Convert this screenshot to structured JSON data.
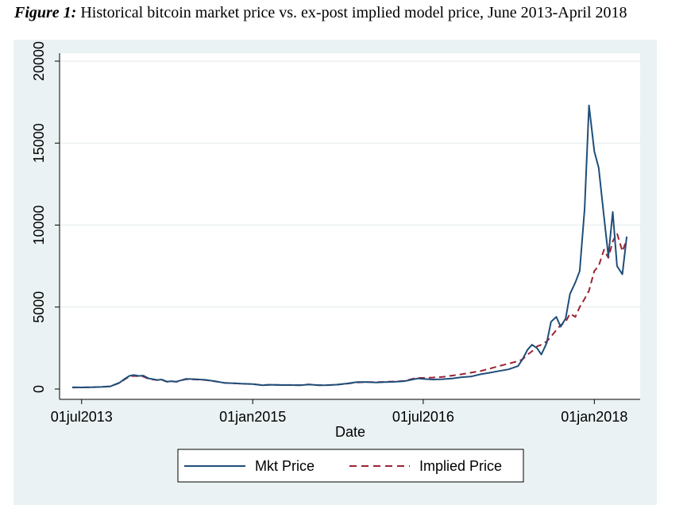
{
  "figure": {
    "caption_lead": "Figure 1:",
    "caption_text": " Historical bitcoin market price vs. ex-post implied model price, June 2013-April 2018"
  },
  "colors": {
    "background": "#eaf2f3",
    "plot_area": "#ffffff",
    "grid": "#e7eeef",
    "mkt_price": "#1f4e79",
    "implied_price": "#9b2335"
  },
  "chart_data": {
    "type": "line",
    "title": "",
    "xlabel": "Date",
    "ylabel": "",
    "x_ticks": [
      "01jul2013",
      "01jan2015",
      "01jul2016",
      "01jan2018"
    ],
    "x_tick_values": [
      "2013-07-01",
      "2015-01-01",
      "2016-07-01",
      "2018-01-01"
    ],
    "xlim": [
      "2013-06-01",
      "2018-04-30"
    ],
    "y_ticks": [
      "0",
      "5000",
      "10000",
      "15000",
      "20000"
    ],
    "y_tick_values": [
      0,
      5000,
      10000,
      15000,
      20000
    ],
    "ylim": [
      0,
      20000
    ],
    "grid": true,
    "legend_position": "bottom",
    "x": [
      "2013-06-01",
      "2013-07-01",
      "2013-08-01",
      "2013-09-01",
      "2013-10-01",
      "2013-11-01",
      "2013-11-15",
      "2013-12-01",
      "2013-12-15",
      "2014-01-01",
      "2014-01-15",
      "2014-02-01",
      "2014-02-15",
      "2014-03-01",
      "2014-03-15",
      "2014-04-01",
      "2014-04-15",
      "2014-05-01",
      "2014-06-01",
      "2014-07-01",
      "2014-08-01",
      "2014-09-01",
      "2014-10-01",
      "2014-11-01",
      "2014-12-01",
      "2015-01-01",
      "2015-02-01",
      "2015-03-01",
      "2015-04-01",
      "2015-05-01",
      "2015-06-01",
      "2015-07-01",
      "2015-08-01",
      "2015-09-01",
      "2015-10-01",
      "2015-11-01",
      "2015-12-01",
      "2016-01-01",
      "2016-02-01",
      "2016-03-01",
      "2016-04-01",
      "2016-05-01",
      "2016-06-01",
      "2016-06-15",
      "2016-07-01",
      "2016-08-01",
      "2016-09-01",
      "2016-10-01",
      "2016-11-01",
      "2016-12-01",
      "2017-01-01",
      "2017-02-01",
      "2017-03-01",
      "2017-04-01",
      "2017-05-01",
      "2017-05-15",
      "2017-06-01",
      "2017-06-15",
      "2017-07-01",
      "2017-07-15",
      "2017-08-01",
      "2017-08-15",
      "2017-09-01",
      "2017-09-15",
      "2017-10-01",
      "2017-10-15",
      "2017-11-01",
      "2017-11-15",
      "2017-12-01",
      "2017-12-15",
      "2018-01-01",
      "2018-01-15",
      "2018-02-01",
      "2018-02-15",
      "2018-03-01",
      "2018-03-15",
      "2018-04-01",
      "2018-04-15"
    ],
    "series": [
      {
        "name": "Mkt Price",
        "style": "solid",
        "values": [
          110,
          95,
          105,
          125,
          160,
          400,
          600,
          800,
          850,
          800,
          820,
          650,
          600,
          550,
          580,
          450,
          480,
          450,
          620,
          600,
          560,
          480,
          380,
          350,
          320,
          300,
          230,
          260,
          240,
          240,
          230,
          280,
          230,
          235,
          270,
          340,
          420,
          430,
          400,
          420,
          440,
          480,
          600,
          650,
          620,
          580,
          600,
          640,
          720,
          760,
          900,
          1000,
          1100,
          1200,
          1400,
          1800,
          2400,
          2700,
          2500,
          2100,
          2800,
          4100,
          4400,
          3800,
          4300,
          5800,
          6500,
          7200,
          11000,
          17300,
          14500,
          13500,
          10500,
          8100,
          10800,
          7500,
          7000,
          9300
        ]
      },
      {
        "name": "Implied Price",
        "style": "dashed",
        "values": [
          90,
          100,
          110,
          130,
          170,
          380,
          570,
          760,
          800,
          780,
          760,
          620,
          580,
          540,
          560,
          440,
          470,
          440,
          600,
          580,
          550,
          470,
          380,
          350,
          320,
          300,
          240,
          260,
          245,
          245,
          235,
          280,
          235,
          240,
          270,
          330,
          400,
          420,
          420,
          440,
          460,
          500,
          640,
          680,
          680,
          700,
          740,
          820,
          900,
          1000,
          1100,
          1250,
          1400,
          1550,
          1700,
          1800,
          2100,
          2300,
          2600,
          2700,
          2900,
          3200,
          3600,
          3900,
          4100,
          4600,
          4400,
          5000,
          5500,
          6000,
          7200,
          7500,
          8500,
          8000,
          9000,
          9500,
          8400,
          9100
        ]
      }
    ]
  }
}
